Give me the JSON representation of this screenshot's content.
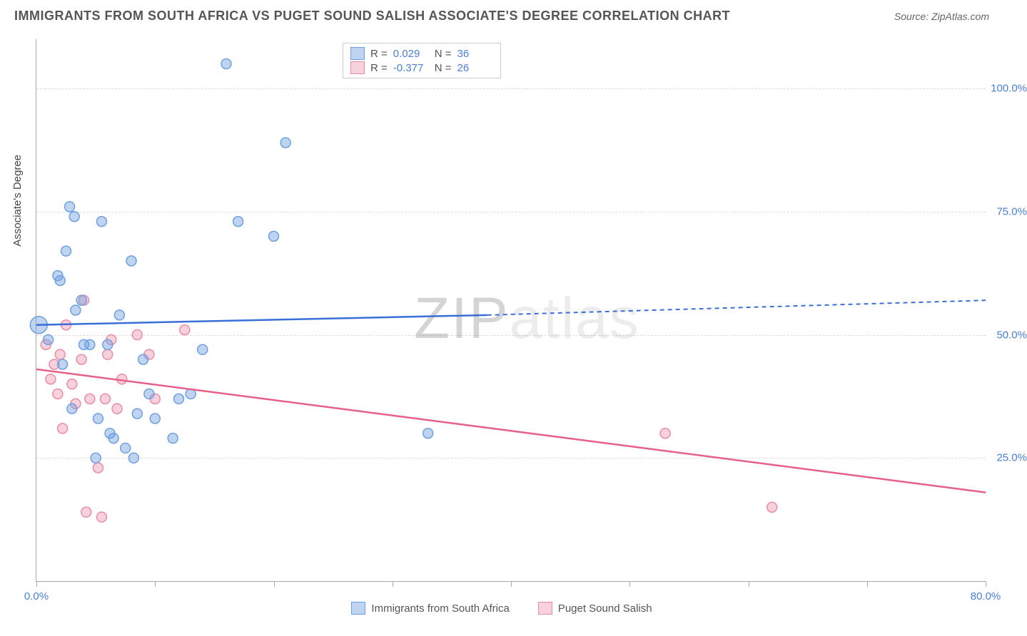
{
  "title": "IMMIGRANTS FROM SOUTH AFRICA VS PUGET SOUND SALISH ASSOCIATE'S DEGREE CORRELATION CHART",
  "source": "Source: ZipAtlas.com",
  "yaxis_title": "Associate's Degree",
  "watermark": "ZIPatlas",
  "chart": {
    "type": "scatter",
    "xlim": [
      0,
      80
    ],
    "ylim": [
      0,
      110
    ],
    "ytick_values": [
      25,
      50,
      75,
      100
    ],
    "ytick_labels": [
      "25.0%",
      "50.0%",
      "75.0%",
      "100.0%"
    ],
    "xtick_values": [
      0,
      10,
      20,
      30,
      40,
      50,
      60,
      70,
      80
    ],
    "xtick_label_left": "0.0%",
    "xtick_label_right": "80.0%",
    "grid_color": "#dddddd",
    "axis_color": "#aaaaaa",
    "background_color": "#ffffff"
  },
  "series": {
    "blue": {
      "label": "Immigrants from South Africa",
      "fill": "rgba(110,160,225,0.45)",
      "stroke": "#6ea0e1",
      "line_color": "#3a6fd8",
      "R": "0.029",
      "N": "36",
      "trend": {
        "x1": 0,
        "y1": 52,
        "x2_solid": 38,
        "y2_solid": 54,
        "x2_dash": 80,
        "y2_dash": 57
      },
      "points": [
        {
          "x": 0.2,
          "y": 52,
          "r": 12
        },
        {
          "x": 1.0,
          "y": 49,
          "r": 7
        },
        {
          "x": 1.8,
          "y": 62,
          "r": 7
        },
        {
          "x": 2.0,
          "y": 61,
          "r": 7
        },
        {
          "x": 2.2,
          "y": 44,
          "r": 7
        },
        {
          "x": 2.5,
          "y": 67,
          "r": 7
        },
        {
          "x": 2.8,
          "y": 76,
          "r": 7
        },
        {
          "x": 3.0,
          "y": 35,
          "r": 7
        },
        {
          "x": 3.2,
          "y": 74,
          "r": 7
        },
        {
          "x": 3.3,
          "y": 55,
          "r": 7
        },
        {
          "x": 3.8,
          "y": 57,
          "r": 7
        },
        {
          "x": 4.0,
          "y": 48,
          "r": 7
        },
        {
          "x": 4.5,
          "y": 48,
          "r": 7
        },
        {
          "x": 5.0,
          "y": 25,
          "r": 7
        },
        {
          "x": 5.2,
          "y": 33,
          "r": 7
        },
        {
          "x": 5.5,
          "y": 73,
          "r": 7
        },
        {
          "x": 6.0,
          "y": 48,
          "r": 7
        },
        {
          "x": 6.2,
          "y": 30,
          "r": 7
        },
        {
          "x": 6.5,
          "y": 29,
          "r": 7
        },
        {
          "x": 7.0,
          "y": 54,
          "r": 7
        },
        {
          "x": 7.5,
          "y": 27,
          "r": 7
        },
        {
          "x": 8.0,
          "y": 65,
          "r": 7
        },
        {
          "x": 8.2,
          "y": 25,
          "r": 7
        },
        {
          "x": 8.5,
          "y": 34,
          "r": 7
        },
        {
          "x": 9.0,
          "y": 45,
          "r": 7
        },
        {
          "x": 9.5,
          "y": 38,
          "r": 7
        },
        {
          "x": 10.0,
          "y": 33,
          "r": 7
        },
        {
          "x": 11.5,
          "y": 29,
          "r": 7
        },
        {
          "x": 12.0,
          "y": 37,
          "r": 7
        },
        {
          "x": 13.0,
          "y": 38,
          "r": 7
        },
        {
          "x": 14.0,
          "y": 47,
          "r": 7
        },
        {
          "x": 16.0,
          "y": 105,
          "r": 7
        },
        {
          "x": 17.0,
          "y": 73,
          "r": 7
        },
        {
          "x": 20.0,
          "y": 70,
          "r": 7
        },
        {
          "x": 21.0,
          "y": 89,
          "r": 7
        },
        {
          "x": 33.0,
          "y": 30,
          "r": 7
        }
      ]
    },
    "pink": {
      "label": "Puget Sound Salish",
      "fill": "rgba(235,140,165,0.40)",
      "stroke": "#eb8ca5",
      "line_color": "#e85f8a",
      "R": "-0.377",
      "N": "26",
      "trend": {
        "x1": 0,
        "y1": 43,
        "x2": 80,
        "y2": 18
      },
      "points": [
        {
          "x": 0.8,
          "y": 48,
          "r": 7
        },
        {
          "x": 1.2,
          "y": 41,
          "r": 7
        },
        {
          "x": 1.5,
          "y": 44,
          "r": 7
        },
        {
          "x": 1.8,
          "y": 38,
          "r": 7
        },
        {
          "x": 2.0,
          "y": 46,
          "r": 7
        },
        {
          "x": 2.2,
          "y": 31,
          "r": 7
        },
        {
          "x": 2.5,
          "y": 52,
          "r": 7
        },
        {
          "x": 3.0,
          "y": 40,
          "r": 7
        },
        {
          "x": 3.3,
          "y": 36,
          "r": 7
        },
        {
          "x": 3.8,
          "y": 45,
          "r": 7
        },
        {
          "x": 4.0,
          "y": 57,
          "r": 7
        },
        {
          "x": 4.2,
          "y": 14,
          "r": 7
        },
        {
          "x": 4.5,
          "y": 37,
          "r": 7
        },
        {
          "x": 5.2,
          "y": 23,
          "r": 7
        },
        {
          "x": 5.5,
          "y": 13,
          "r": 7
        },
        {
          "x": 5.8,
          "y": 37,
          "r": 7
        },
        {
          "x": 6.0,
          "y": 46,
          "r": 7
        },
        {
          "x": 6.3,
          "y": 49,
          "r": 7
        },
        {
          "x": 6.8,
          "y": 35,
          "r": 7
        },
        {
          "x": 7.2,
          "y": 41,
          "r": 7
        },
        {
          "x": 8.5,
          "y": 50,
          "r": 7
        },
        {
          "x": 9.5,
          "y": 46,
          "r": 7
        },
        {
          "x": 10.0,
          "y": 37,
          "r": 7
        },
        {
          "x": 12.5,
          "y": 51,
          "r": 7
        },
        {
          "x": 53.0,
          "y": 30,
          "r": 7
        },
        {
          "x": 62.0,
          "y": 15,
          "r": 7
        }
      ]
    }
  },
  "legend": {
    "r_label": "R =",
    "n_label": "N ="
  }
}
